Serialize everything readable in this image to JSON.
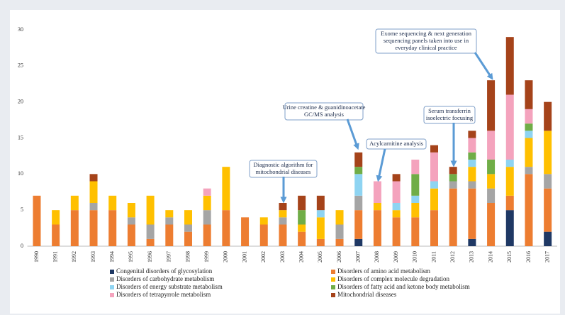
{
  "chart_data": {
    "type": "stacked_bar",
    "categories": [
      "1990",
      "1991",
      "1992",
      "1993",
      "1994",
      "1995",
      "1996",
      "1997",
      "1998",
      "1999",
      "2000",
      "2001",
      "2002",
      "2003",
      "2004",
      "2005",
      "2006",
      "2007",
      "2008",
      "2009",
      "2010",
      "2011",
      "2012",
      "2013",
      "2014",
      "2015",
      "2016",
      "2017"
    ],
    "series": [
      {
        "name": "Congenital disorders of glycosylation",
        "color": "#1f3864",
        "values": [
          0,
          0,
          0,
          0,
          0,
          0,
          0,
          0,
          0,
          0,
          0,
          0,
          0,
          0,
          0,
          0,
          0,
          1,
          0,
          0,
          0,
          0,
          0,
          1,
          0,
          5,
          0,
          2
        ]
      },
      {
        "name": "Disorders of amino acid metabolism",
        "color": "#ed7d31",
        "values": [
          7,
          3,
          5,
          5,
          5,
          3,
          1,
          3,
          2,
          3,
          5,
          4,
          3,
          3,
          2,
          1,
          1,
          4,
          5,
          4,
          4,
          5,
          8,
          7,
          6,
          2,
          10,
          6
        ]
      },
      {
        "name": "Disorders of carbohydrate metabolism",
        "color": "#a5a5a5",
        "values": [
          0,
          0,
          0,
          1,
          0,
          1,
          2,
          1,
          1,
          2,
          0,
          0,
          0,
          1,
          0,
          0,
          2,
          2,
          0,
          0,
          0,
          0,
          1,
          1,
          2,
          0,
          1,
          2
        ]
      },
      {
        "name": "Disorders of complex molecule degradation",
        "color": "#ffc000",
        "values": [
          0,
          2,
          2,
          3,
          2,
          2,
          4,
          1,
          2,
          2,
          6,
          0,
          1,
          1,
          1,
          3,
          2,
          0,
          1,
          1,
          2,
          3,
          0,
          2,
          2,
          4,
          4,
          6
        ]
      },
      {
        "name": "Disorders of energy substrate metabolism",
        "color": "#8ed4f2",
        "values": [
          0,
          0,
          0,
          0,
          0,
          0,
          0,
          0,
          0,
          0,
          0,
          0,
          0,
          0,
          0,
          1,
          0,
          3,
          0,
          1,
          1,
          1,
          0,
          1,
          0,
          1,
          1,
          0
        ]
      },
      {
        "name": "Disorders of fatty acid and ketone body metabolism",
        "color": "#70ad47",
        "values": [
          0,
          0,
          0,
          0,
          0,
          0,
          0,
          0,
          0,
          0,
          0,
          0,
          0,
          0,
          2,
          0,
          0,
          1,
          0,
          0,
          3,
          0,
          1,
          1,
          2,
          0,
          1,
          0
        ]
      },
      {
        "name": "Disorders of tetrapyrrole metabolism",
        "color": "#f4a3bd",
        "values": [
          0,
          0,
          0,
          0,
          0,
          0,
          0,
          0,
          0,
          1,
          0,
          0,
          0,
          0,
          0,
          0,
          0,
          0,
          3,
          3,
          2,
          4,
          0,
          2,
          4,
          9,
          2,
          0
        ]
      },
      {
        "name": "Mitochondrial diseases",
        "color": "#a5431a",
        "values": [
          0,
          0,
          0,
          1,
          0,
          0,
          0,
          0,
          0,
          0,
          0,
          0,
          0,
          1,
          2,
          2,
          0,
          2,
          0,
          1,
          0,
          1,
          1,
          1,
          7,
          8,
          4,
          4
        ]
      }
    ],
    "ylim": [
      0,
      30
    ],
    "yticks": [
      0,
      5,
      10,
      15,
      20,
      25,
      30
    ],
    "grid": false,
    "legend": "bottom",
    "annotations": [
      {
        "lines": [
          "Diagnostic algorithm for",
          "mitochondrial diseases"
        ]
      },
      {
        "lines": [
          "Urine creatine & guanidinoacetate",
          "GC/MS analysis"
        ]
      },
      {
        "lines": [
          "Acylcarnitine analysis"
        ]
      },
      {
        "lines": [
          "Serum transferrin",
          "isoelectric focusing"
        ]
      },
      {
        "lines": [
          "Exome sequencing & next generation",
          "sequencing panels taken into use in",
          "everyday clinical practice"
        ]
      }
    ]
  }
}
